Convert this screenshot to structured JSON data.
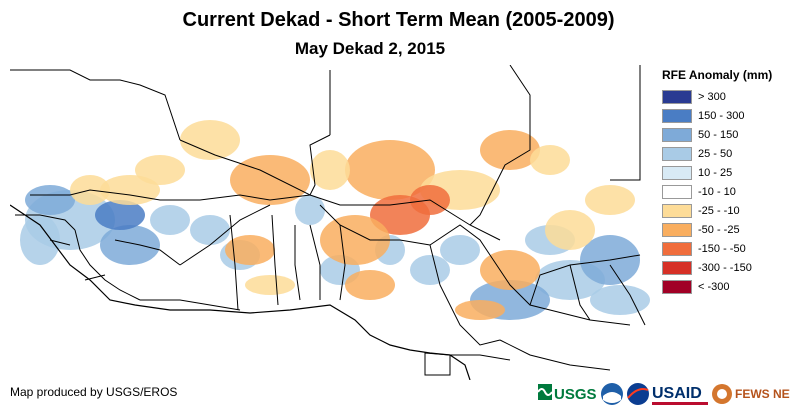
{
  "title": "Current Dekad - Short Term Mean (2005-2009)",
  "subtitle": "May Dekad 2, 2015",
  "legend": {
    "title": "RFE Anomaly (mm)",
    "items": [
      {
        "label": "> 300",
        "color": "#2a3b92"
      },
      {
        "label": "150 - 300",
        "color": "#4a7dc4"
      },
      {
        "label": "50 - 150",
        "color": "#7eaad8"
      },
      {
        "label": "25 - 50",
        "color": "#a9cbe6"
      },
      {
        "label": "10 - 25",
        "color": "#d8eaf5"
      },
      {
        "label": "-10 - 10",
        "color": "#ffffff"
      },
      {
        "label": "-25 - -10",
        "color": "#fddc98"
      },
      {
        "label": "-50 - -25",
        "color": "#f9ae5f"
      },
      {
        "label": "-150 - -50",
        "color": "#f06d3c"
      },
      {
        "label": "-300 - -150",
        "color": "#d63026"
      },
      {
        "label": "< -300",
        "color": "#a10026"
      }
    ]
  },
  "credit": "Map produced by USGS/EROS",
  "logos": {
    "usgs": "USGS",
    "usaid": "USAID",
    "fews": "FEWS NET"
  }
}
